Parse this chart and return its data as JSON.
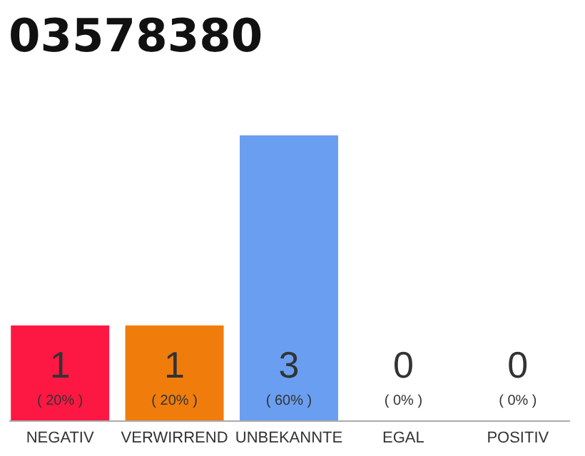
{
  "chart_data": {
    "type": "bar",
    "title": "03578380",
    "categories": [
      "NEGATIV",
      "VERWIRREND",
      "UNBEKANNTE",
      "EGAL",
      "POSITIV"
    ],
    "values": [
      20,
      20,
      60,
      0,
      0
    ],
    "colors": [
      "#fd1843",
      "#f07c0c",
      "#6a9ef0",
      "#eeeeee",
      "#eeeeee"
    ],
    "value_labels": [
      "( 20% )",
      "( 20% )",
      "( 60% )",
      "( 0% )",
      "( 0% )"
    ],
    "annotations": [
      {
        "text": "1",
        "x": "NEGATIV",
        "y": 0
      },
      {
        "text": "1",
        "x": "VERWIRREND",
        "y": 0
      },
      {
        "text": "3",
        "x": "UNBEKANNTE",
        "y": 0
      },
      {
        "text": "0",
        "x": "EGAL",
        "y": 0
      },
      {
        "text": "0",
        "x": "POSITIV",
        "y": 0
      }
    ]
  }
}
